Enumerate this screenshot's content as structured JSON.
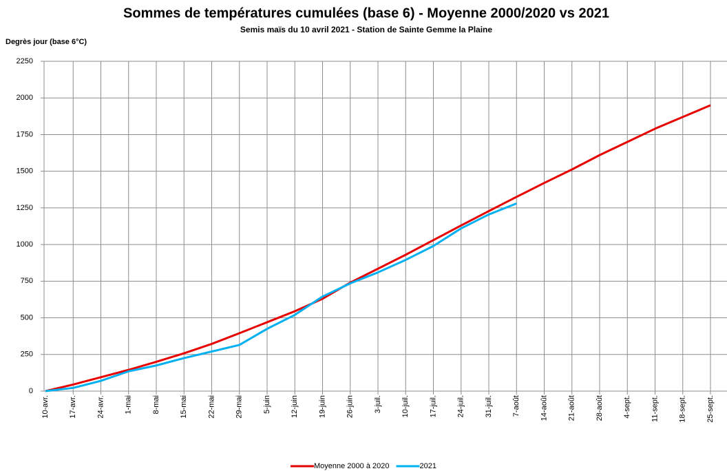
{
  "chart_data": {
    "type": "line",
    "title": "Sommes de températures cumulées (base 6) - Moyenne 2000/2020 vs 2021",
    "subtitle": "Semis maïs du 10 avril 2021 - Station de Sainte Gemme la Plaine",
    "y_label": "Degrès jour (base 6°C)",
    "categories": [
      "10-avr.",
      "17-avr.",
      "24-avr.",
      "1-mai",
      "8-mai",
      "15-mai",
      "22-mai",
      "29-mai",
      "5-juin",
      "12-juin",
      "19-juin",
      "26-juin",
      "3-juil.",
      "10-juil.",
      "17-juil.",
      "24-juil.",
      "31-juil.",
      "7-août",
      "14-août",
      "21-août",
      "28-août",
      "4-sept.",
      "11-sept.",
      "18-sept.",
      "25-sept."
    ],
    "series": [
      {
        "name": "Moyenne 2000 à 2020",
        "color": "#e60000",
        "values": [
          0,
          45,
          95,
          145,
          200,
          258,
          322,
          395,
          470,
          545,
          630,
          740,
          835,
          930,
          1030,
          1130,
          1228,
          1325,
          1420,
          1512,
          1610,
          1700,
          1790,
          1870,
          1950
        ]
      },
      {
        "name": "2021",
        "color": "#00b0f0",
        "values": [
          0,
          22,
          70,
          135,
          175,
          225,
          270,
          315,
          425,
          520,
          645,
          735,
          810,
          895,
          990,
          1110,
          1205,
          1280,
          null,
          null,
          null,
          null,
          null,
          null,
          null
        ]
      }
    ],
    "ylim": [
      0,
      2250
    ],
    "yticks": [
      0,
      250,
      500,
      750,
      1000,
      1250,
      1500,
      1750,
      2000,
      2250
    ],
    "grid": true,
    "legend": "bottom"
  }
}
